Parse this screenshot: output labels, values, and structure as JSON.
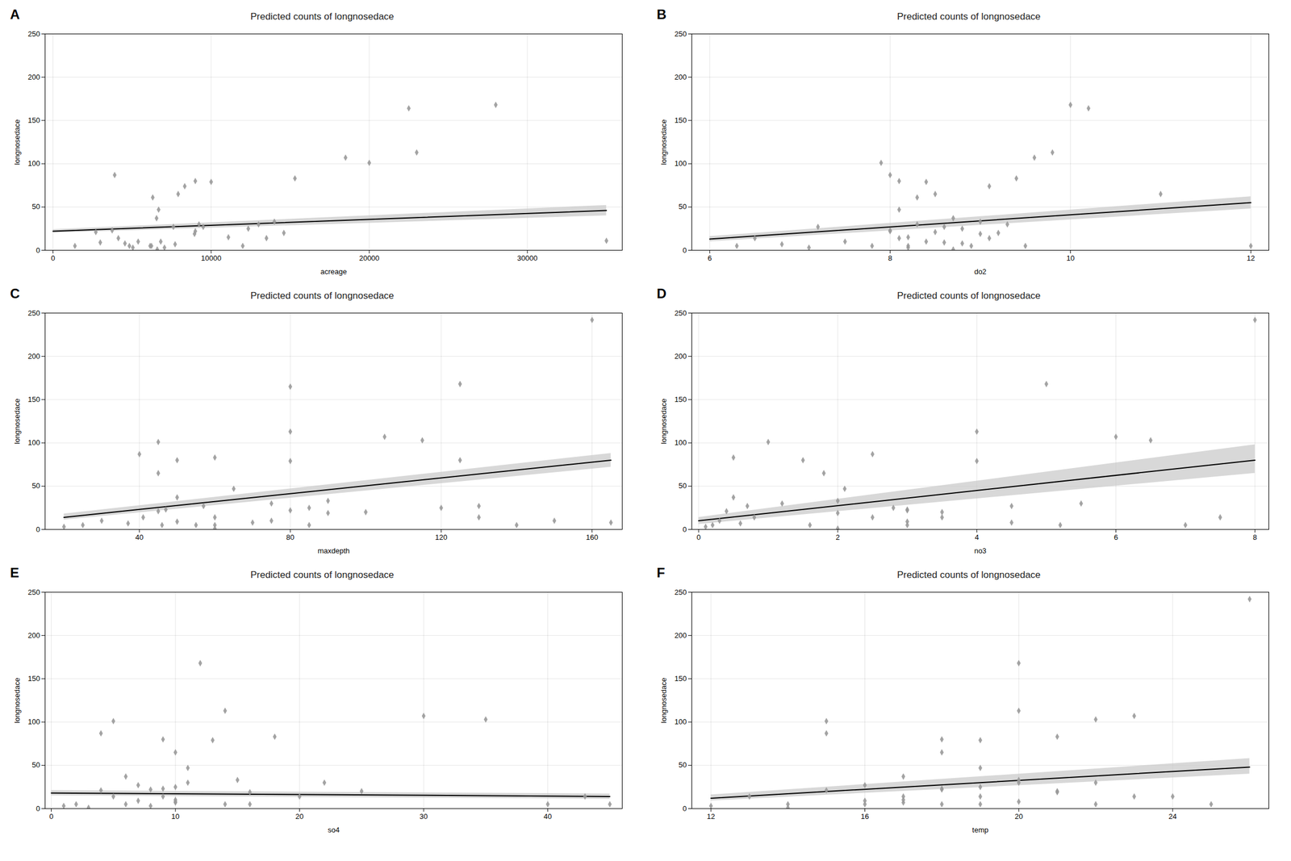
{
  "chart_data": [
    {
      "type": "scatter",
      "title": "Predicted counts of longnosedace",
      "annotations": [
        "A"
      ],
      "xlabel": "acreage",
      "ylabel": "longnosedace",
      "x": [
        1386,
        2708,
        2990,
        3741,
        3899,
        4132,
        4550,
        4831,
        5050,
        5386,
        6143,
        6227,
        6307,
        6550,
        6592,
        6679,
        6814,
        7050,
        7614,
        7722,
        7915,
        8330,
        8950,
        9000,
        9000,
        9232,
        9500,
        10000,
        11092,
        12000,
        12350,
        13000,
        13500,
        14000,
        14600,
        15300,
        18500,
        20000,
        22500,
        23000,
        28000,
        35000
      ],
      "values": [
        5,
        21,
        9,
        23,
        87,
        14,
        8,
        5,
        3,
        10,
        5,
        5,
        61,
        37,
        1,
        47,
        10,
        3,
        27,
        7,
        65,
        74,
        19,
        80,
        22,
        30,
        27,
        79,
        15,
        5,
        25,
        30,
        14,
        33,
        20,
        83,
        107,
        101,
        164,
        113,
        168,
        11
      ],
      "color": "#999999",
      "marker": "diamond",
      "series": [
        {
          "type": "area",
          "x": [
            0,
            35000
          ],
          "lower": [
            20,
            40
          ],
          "upper": [
            24,
            52
          ],
          "color": "#c8c8c8"
        },
        {
          "type": "line",
          "x": [
            0,
            35000
          ],
          "values": [
            22,
            46
          ],
          "color": "#000000"
        }
      ],
      "xlim": [
        -500,
        36000
      ],
      "ylim": [
        0,
        250
      ],
      "xticks": [
        0,
        10000,
        20000,
        30000
      ],
      "yticks": [
        0,
        50,
        100,
        150,
        200,
        250
      ],
      "grid": true
    },
    {
      "type": "scatter",
      "title": "Predicted counts of longnosedace",
      "annotations": [
        "B"
      ],
      "xlabel": "do2",
      "ylabel": "longnosedace",
      "x": [
        6.3,
        6.5,
        6.8,
        7.1,
        7.2,
        7.5,
        7.8,
        7.9,
        8.0,
        8.0,
        8.0,
        8.1,
        8.1,
        8.1,
        8.2,
        8.2,
        8.2,
        8.3,
        8.3,
        8.4,
        8.4,
        8.5,
        8.5,
        8.6,
        8.6,
        8.7,
        8.7,
        8.8,
        8.8,
        8.9,
        9.0,
        9.0,
        9.1,
        9.1,
        9.2,
        9.3,
        9.4,
        9.5,
        9.6,
        9.8,
        10.0,
        10.2,
        11.0,
        12.0
      ],
      "values": [
        5,
        14,
        7,
        3,
        27,
        10,
        5,
        101,
        87,
        23,
        22,
        47,
        80,
        14,
        15,
        5,
        3,
        61,
        30,
        10,
        79,
        21,
        65,
        9,
        27,
        37,
        1,
        8,
        25,
        5,
        33,
        19,
        74,
        14,
        20,
        30,
        83,
        5,
        107,
        113,
        168,
        164,
        65,
        5
      ],
      "color": "#999999",
      "marker": "diamond",
      "series": [
        {
          "type": "area",
          "x": [
            6.0,
            12.0
          ],
          "lower": [
            10,
            48
          ],
          "upper": [
            16,
            62
          ],
          "color": "#c8c8c8"
        },
        {
          "type": "line",
          "x": [
            6.0,
            12.0
          ],
          "values": [
            13,
            55
          ],
          "color": "#000000"
        }
      ],
      "xlim": [
        5.8,
        12.2
      ],
      "ylim": [
        0,
        250
      ],
      "xticks": [
        6,
        8,
        10,
        12
      ],
      "yticks": [
        0,
        50,
        100,
        150,
        200,
        250
      ],
      "grid": true
    },
    {
      "type": "scatter",
      "title": "Predicted counts of longnosedace",
      "annotations": [
        "C"
      ],
      "xlabel": "maxdepth",
      "ylabel": "longnosedace",
      "x": [
        20,
        25,
        30,
        37,
        40,
        41,
        45,
        45,
        45,
        46,
        47,
        50,
        50,
        50,
        55,
        57,
        60,
        60,
        60,
        60,
        65,
        70,
        75,
        75,
        80,
        80,
        80,
        80,
        85,
        85,
        90,
        90,
        100,
        105,
        115,
        120,
        125,
        125,
        130,
        130,
        140,
        150,
        160,
        165
      ],
      "values": [
        3,
        5,
        10,
        7,
        87,
        14,
        65,
        21,
        101,
        5,
        23,
        37,
        80,
        9,
        5,
        27,
        14,
        1,
        83,
        5,
        47,
        8,
        30,
        10,
        165,
        79,
        22,
        113,
        5,
        25,
        33,
        19,
        20,
        107,
        103,
        25,
        80,
        168,
        27,
        14,
        5,
        10,
        242,
        8
      ],
      "color": "#999999",
      "marker": "diamond",
      "series": [
        {
          "type": "area",
          "x": [
            20,
            165
          ],
          "lower": [
            11,
            72
          ],
          "upper": [
            18,
            88
          ],
          "color": "#c8c8c8"
        },
        {
          "type": "line",
          "x": [
            20,
            165
          ],
          "values": [
            14,
            80
          ],
          "color": "#000000"
        }
      ],
      "xlim": [
        15,
        168
      ],
      "ylim": [
        0,
        250
      ],
      "xticks": [
        40,
        80,
        120,
        160
      ],
      "yticks": [
        0,
        50,
        100,
        150,
        200,
        250
      ],
      "grid": true
    },
    {
      "type": "scatter",
      "title": "Predicted counts of longnosedace",
      "annotations": [
        "D"
      ],
      "xlabel": "no3",
      "ylabel": "longnosedace",
      "x": [
        0.1,
        0.2,
        0.3,
        0.4,
        0.5,
        0.5,
        0.6,
        0.7,
        0.8,
        1.0,
        1.2,
        1.5,
        1.6,
        1.8,
        2.0,
        2.0,
        2.0,
        2.1,
        2.5,
        2.5,
        2.8,
        3.0,
        3.0,
        3.0,
        3.0,
        3.5,
        3.5,
        4.0,
        4.0,
        4.5,
        4.5,
        5.0,
        5.2,
        5.5,
        6.0,
        6.5,
        7.0,
        7.5,
        8.0
      ],
      "values": [
        3,
        5,
        10,
        21,
        83,
        37,
        7,
        27,
        14,
        101,
        30,
        80,
        5,
        65,
        33,
        1,
        19,
        47,
        14,
        87,
        25,
        9,
        23,
        22,
        5,
        20,
        14,
        79,
        113,
        8,
        27,
        168,
        5,
        30,
        107,
        103,
        5,
        14,
        242
      ],
      "color": "#999999",
      "marker": "diamond",
      "series": [
        {
          "type": "area",
          "x": [
            0.0,
            8.0
          ],
          "lower": [
            6,
            65
          ],
          "upper": [
            14,
            98
          ],
          "color": "#c8c8c8"
        },
        {
          "type": "line",
          "x": [
            0.0,
            8.0
          ],
          "values": [
            10,
            80
          ],
          "color": "#000000"
        }
      ],
      "xlim": [
        -0.1,
        8.2
      ],
      "ylim": [
        0,
        250
      ],
      "xticks": [
        0,
        2,
        4,
        6,
        8
      ],
      "yticks": [
        0,
        50,
        100,
        150,
        200,
        250
      ],
      "grid": true
    },
    {
      "type": "scatter",
      "title": "Predicted counts of longnosedace",
      "annotations": [
        "E"
      ],
      "xlabel": "so4",
      "ylabel": "longnosedace",
      "x": [
        1,
        2,
        3,
        4,
        4,
        5,
        5,
        6,
        6,
        7,
        7,
        8,
        8,
        9,
        9,
        9,
        10,
        10,
        10,
        10,
        10,
        11,
        11,
        12,
        13,
        14,
        14,
        15,
        16,
        16,
        18,
        20,
        22,
        25,
        30,
        35,
        40,
        43,
        45
      ],
      "values": [
        3,
        5,
        1,
        21,
        87,
        101,
        14,
        37,
        5,
        9,
        27,
        3,
        22,
        23,
        80,
        14,
        7,
        10,
        65,
        25,
        8,
        47,
        30,
        168,
        79,
        5,
        113,
        33,
        19,
        5,
        83,
        14,
        30,
        20,
        107,
        103,
        5,
        14,
        5
      ],
      "color": "#999999",
      "marker": "diamond",
      "series": [
        {
          "type": "area",
          "x": [
            0,
            45
          ],
          "lower": [
            15,
            11
          ],
          "upper": [
            21,
            17
          ],
          "color": "#c8c8c8"
        },
        {
          "type": "line",
          "x": [
            0,
            45
          ],
          "values": [
            18,
            14
          ],
          "color": "#000000"
        }
      ],
      "xlim": [
        -0.5,
        46
      ],
      "ylim": [
        0,
        250
      ],
      "xticks": [
        0,
        10,
        20,
        30,
        40
      ],
      "yticks": [
        0,
        50,
        100,
        150,
        200,
        250
      ],
      "grid": true
    },
    {
      "type": "scatter",
      "title": "Predicted counts of longnosedace",
      "annotations": [
        "F"
      ],
      "xlabel": "temp",
      "ylabel": "longnosedace",
      "x": [
        12,
        13,
        14,
        14,
        15,
        15,
        15,
        16,
        16,
        16,
        17,
        17,
        17,
        17,
        18,
        18,
        18,
        18,
        18,
        19,
        19,
        19,
        19,
        19,
        20,
        20,
        20,
        20,
        20,
        21,
        21,
        21,
        22,
        22,
        22,
        23,
        23,
        24,
        25,
        26
      ],
      "values": [
        3,
        14,
        5,
        1,
        101,
        21,
        87,
        9,
        27,
        5,
        37,
        14,
        7,
        10,
        65,
        23,
        22,
        5,
        80,
        14,
        47,
        25,
        79,
        5,
        113,
        33,
        8,
        30,
        168,
        20,
        19,
        83,
        5,
        103,
        30,
        107,
        14,
        14,
        5,
        242
      ],
      "color": "#999999",
      "marker": "diamond",
      "series": [
        {
          "type": "area",
          "x": [
            12,
            26
          ],
          "lower": [
            9,
            40
          ],
          "upper": [
            16,
            58
          ],
          "color": "#c8c8c8"
        },
        {
          "type": "line",
          "x": [
            12,
            26
          ],
          "values": [
            12,
            48
          ],
          "color": "#000000"
        }
      ],
      "xlim": [
        11.5,
        26.5
      ],
      "ylim": [
        0,
        250
      ],
      "xticks": [
        12,
        16,
        20,
        24
      ],
      "yticks": [
        0,
        50,
        100,
        150,
        200,
        250
      ],
      "grid": true
    }
  ]
}
